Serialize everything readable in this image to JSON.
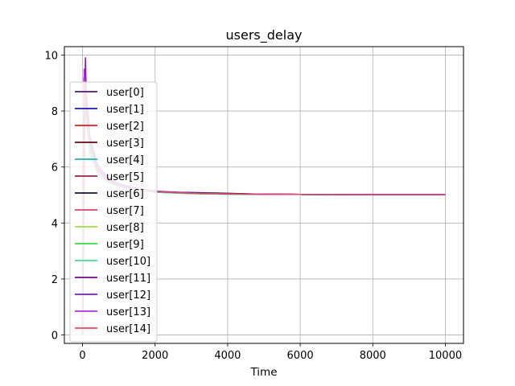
{
  "chart_data": {
    "type": "line",
    "title": "users_delay",
    "xlabel": "Time",
    "ylabel": "",
    "xlim": [
      -500,
      10500
    ],
    "ylim": [
      -0.3,
      10.3
    ],
    "xticks": [
      "0",
      "2000",
      "4000",
      "6000",
      "8000",
      "10000"
    ],
    "yticks": [
      "0",
      "2",
      "4",
      "6",
      "8",
      "10"
    ],
    "grid": true,
    "legend_position": "left",
    "series": [
      {
        "name": "user[0]",
        "color": "#4b1a7a",
        "x": [
          0,
          40,
          100,
          200,
          400,
          700,
          1000,
          1500,
          2000,
          3000,
          4000,
          5000,
          6000,
          8000,
          10000
        ],
        "y": [
          0,
          9.2,
          8.1,
          6.8,
          5.9,
          5.5,
          5.35,
          5.2,
          5.12,
          5.07,
          5.04,
          5.03,
          5.02,
          5.01,
          5.01
        ]
      },
      {
        "name": "user[1]",
        "color": "#1a1ab4",
        "x": [
          0,
          50,
          100,
          200,
          400,
          700,
          1000,
          1500,
          2000,
          3000,
          4000,
          5000,
          6000,
          8000,
          10000
        ],
        "y": [
          0,
          9.0,
          8.0,
          6.7,
          5.9,
          5.5,
          5.33,
          5.2,
          5.11,
          5.06,
          5.04,
          5.03,
          5.02,
          5.01,
          5.01
        ]
      },
      {
        "name": "user[2]",
        "color": "#d42020",
        "x": [
          0,
          45,
          100,
          200,
          400,
          700,
          1000,
          1500,
          2000,
          3000,
          4000,
          5000,
          6000,
          8000,
          10000
        ],
        "y": [
          0,
          8.9,
          7.9,
          6.6,
          5.8,
          5.45,
          5.3,
          5.18,
          5.1,
          5.06,
          5.04,
          5.02,
          5.02,
          5.01,
          5.01
        ]
      },
      {
        "name": "user[3]",
        "color": "#5a0a14",
        "x": [
          0,
          55,
          100,
          200,
          400,
          700,
          1000,
          1500,
          2000,
          3000,
          4000,
          5000,
          6000,
          8000,
          10000
        ],
        "y": [
          0,
          9.1,
          8.1,
          6.8,
          5.9,
          5.5,
          5.34,
          5.2,
          5.12,
          5.08,
          5.05,
          5.03,
          5.02,
          5.01,
          5.01
        ]
      },
      {
        "name": "user[4]",
        "color": "#20b4b4",
        "x": [
          0,
          60,
          100,
          200,
          400,
          700,
          1000,
          1500,
          2000,
          3000,
          4000,
          5000,
          6000,
          8000,
          10000
        ],
        "y": [
          0,
          8.7,
          7.8,
          6.5,
          5.8,
          5.45,
          5.3,
          5.17,
          5.1,
          5.06,
          5.03,
          5.02,
          5.02,
          5.01,
          5.01
        ]
      },
      {
        "name": "user[5]",
        "color": "#a0204a",
        "x": [
          0,
          50,
          100,
          200,
          400,
          700,
          1000,
          1500,
          2000,
          3000,
          4000,
          5000,
          6000,
          8000,
          10000
        ],
        "y": [
          0,
          9.3,
          8.2,
          6.9,
          6.0,
          5.55,
          5.36,
          5.21,
          5.12,
          5.07,
          5.04,
          5.03,
          5.02,
          5.01,
          5.01
        ]
      },
      {
        "name": "user[6]",
        "color": "#141440",
        "x": [
          0,
          40,
          100,
          200,
          400,
          700,
          1000,
          1500,
          2000,
          3000,
          4000,
          5000,
          6000,
          8000,
          10000
        ],
        "y": [
          0,
          9.0,
          8.0,
          6.7,
          5.9,
          5.5,
          5.33,
          5.19,
          5.11,
          5.09,
          5.06,
          5.03,
          5.02,
          5.01,
          5.01
        ]
      },
      {
        "name": "user[7]",
        "color": "#e0406a",
        "x": [
          0,
          45,
          100,
          200,
          400,
          700,
          1000,
          1500,
          2000,
          3000,
          4000,
          5000,
          6000,
          8000,
          10000
        ],
        "y": [
          0,
          9.5,
          8.3,
          6.9,
          6.0,
          5.55,
          5.37,
          5.22,
          5.13,
          5.06,
          5.04,
          5.03,
          5.02,
          5.02,
          5.02
        ]
      },
      {
        "name": "user[8]",
        "color": "#a0e040",
        "x": [
          0,
          55,
          100,
          200,
          400,
          700,
          1000,
          1500,
          2000,
          3000,
          4000,
          5000,
          6000,
          8000,
          10000
        ],
        "y": [
          0,
          8.8,
          7.9,
          6.6,
          5.85,
          5.47,
          5.31,
          5.18,
          5.1,
          5.05,
          5.03,
          5.02,
          5.02,
          5.01,
          5.01
        ]
      },
      {
        "name": "user[9]",
        "color": "#30e040",
        "x": [
          0,
          50,
          100,
          200,
          400,
          700,
          1000,
          1500,
          2000,
          3000,
          4000,
          5000,
          6000,
          8000,
          10000
        ],
        "y": [
          0,
          8.9,
          7.9,
          6.6,
          5.85,
          5.47,
          5.31,
          5.18,
          5.1,
          5.05,
          5.03,
          5.02,
          5.02,
          5.01,
          5.01
        ]
      },
      {
        "name": "user[10]",
        "color": "#40e090",
        "x": [
          0,
          60,
          100,
          200,
          400,
          700,
          1000,
          1500,
          2000,
          3000,
          4000,
          5000,
          6000,
          8000,
          10000
        ],
        "y": [
          0,
          8.6,
          7.8,
          6.5,
          5.8,
          5.44,
          5.3,
          5.17,
          5.1,
          5.05,
          5.03,
          5.02,
          5.02,
          5.01,
          5.01
        ]
      },
      {
        "name": "user[11]",
        "color": "#6a0a8a",
        "x": [
          0,
          45,
          100,
          200,
          400,
          700,
          1000,
          1500,
          2000,
          3000,
          4000,
          5000,
          6000,
          8000,
          10000
        ],
        "y": [
          0,
          9.2,
          8.1,
          6.8,
          5.95,
          5.52,
          5.35,
          5.2,
          5.12,
          5.07,
          5.04,
          5.03,
          5.02,
          5.01,
          5.01
        ]
      },
      {
        "name": "user[12]",
        "color": "#7a14e0",
        "x": [
          0,
          80,
          100,
          200,
          400,
          700,
          1000,
          1500,
          2000,
          3000,
          4000,
          5000,
          6000,
          8000,
          10000
        ],
        "y": [
          0,
          9.9,
          8.7,
          7.1,
          6.1,
          5.6,
          5.4,
          5.23,
          5.14,
          5.07,
          5.04,
          5.03,
          5.02,
          5.01,
          5.01
        ]
      },
      {
        "name": "user[13]",
        "color": "#b030e0",
        "x": [
          0,
          50,
          100,
          200,
          400,
          700,
          1000,
          1500,
          2000,
          3000,
          4000,
          5000,
          6000,
          8000,
          10000
        ],
        "y": [
          0,
          9.4,
          8.3,
          6.9,
          6.0,
          5.55,
          5.37,
          5.21,
          5.13,
          5.07,
          5.04,
          5.03,
          5.02,
          5.01,
          5.01
        ]
      },
      {
        "name": "user[14]",
        "color": "#e04a60",
        "x": [
          0,
          55,
          100,
          200,
          400,
          700,
          1000,
          1500,
          2000,
          3000,
          4000,
          5000,
          6000,
          8000,
          10000
        ],
        "y": [
          0,
          9.1,
          8.1,
          6.8,
          5.9,
          5.5,
          5.34,
          5.2,
          5.12,
          5.06,
          5.04,
          5.03,
          5.02,
          5.02,
          5.02
        ]
      }
    ]
  }
}
